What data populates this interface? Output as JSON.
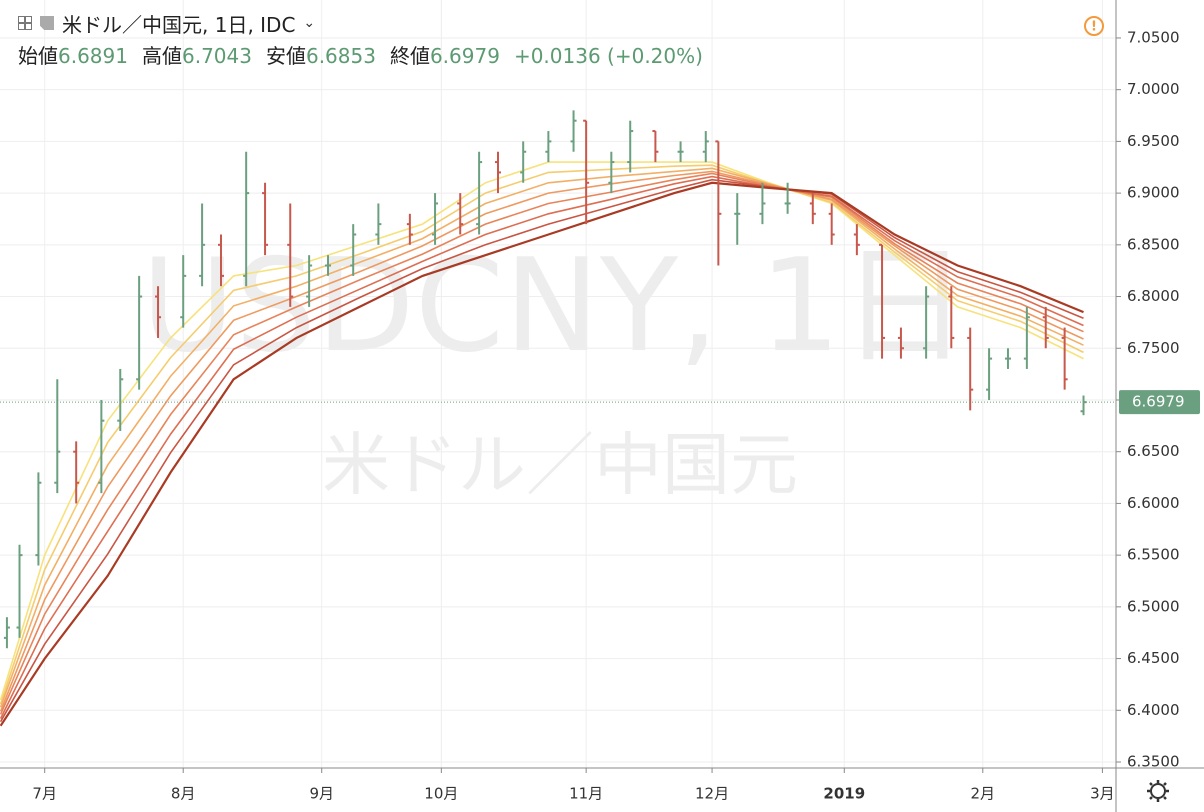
{
  "header": {
    "title": "米ドル／中国元, 1日, IDC",
    "readout": [
      {
        "label": "始値",
        "value": "6.6891"
      },
      {
        "label": "高値",
        "value": "6.7043"
      },
      {
        "label": "安値",
        "value": "6.6853"
      },
      {
        "label": "終値",
        "value": "6.6979"
      }
    ],
    "change": "+0.0136 (+0.20%)"
  },
  "watermark": {
    "symbol": "USDCNY, 1日",
    "description": "米ドル／中国元"
  },
  "chart_data": {
    "type": "ohlc",
    "xlim": [
      -7.1,
      170
    ],
    "xticks": [
      {
        "value": 0,
        "label": "7月"
      },
      {
        "value": 22,
        "label": "8月"
      },
      {
        "value": 44,
        "label": "9月"
      },
      {
        "value": 63,
        "label": "10月"
      },
      {
        "value": 86,
        "label": "11月"
      },
      {
        "value": 106,
        "label": "12月"
      },
      {
        "value": 127,
        "label": "2019"
      },
      {
        "value": 149,
        "label": "2月"
      },
      {
        "value": 168,
        "label": "3月"
      }
    ],
    "ylim": [
      6.3442,
      7.0867
    ],
    "yticks": [
      {
        "value": 6.35,
        "label": "6.3500"
      },
      {
        "value": 6.4,
        "label": "6.4000"
      },
      {
        "value": 6.45,
        "label": "6.4500"
      },
      {
        "value": 6.5,
        "label": "6.5000"
      },
      {
        "value": 6.55,
        "label": "6.5500"
      },
      {
        "value": 6.6,
        "label": "6.6000"
      },
      {
        "value": 6.65,
        "label": "6.6500"
      },
      {
        "value": 6.7,
        "label": "6.7000"
      },
      {
        "value": 6.75,
        "label": "6.7500"
      },
      {
        "value": 6.8,
        "label": "6.8000"
      },
      {
        "value": 6.85,
        "label": "6.8500"
      },
      {
        "value": 6.9,
        "label": "6.9000"
      },
      {
        "value": 6.95,
        "label": "6.9500"
      },
      {
        "value": 7.0,
        "label": "7.0000"
      },
      {
        "value": 7.05,
        "label": "7.0500"
      }
    ],
    "grid": true,
    "up_color": "#6a9f7f",
    "down_color": "#c8574c",
    "last_color": "#6a9f7f",
    "ohlc": {
      "x": [
        -6,
        -4,
        -1,
        2,
        5,
        9,
        12,
        15,
        18,
        22,
        25,
        28,
        32,
        35,
        39,
        42,
        45,
        49,
        53,
        58,
        62,
        66,
        69,
        72,
        76,
        80,
        84,
        86,
        90,
        93,
        97,
        101,
        105,
        107,
        110,
        114,
        118,
        122,
        125,
        129,
        133,
        136,
        140,
        144,
        147,
        150,
        153,
        156,
        159,
        162,
        165
      ],
      "open": [
        6.47,
        6.48,
        6.55,
        6.62,
        6.65,
        6.62,
        6.68,
        6.72,
        6.8,
        6.78,
        6.82,
        6.85,
        6.82,
        6.9,
        6.85,
        6.8,
        6.83,
        6.83,
        6.86,
        6.87,
        6.86,
        6.89,
        6.87,
        6.93,
        6.92,
        6.94,
        6.95,
        6.97,
        6.91,
        6.93,
        6.96,
        6.94,
        6.94,
        6.95,
        6.88,
        6.88,
        6.89,
        6.89,
        6.88,
        6.86,
        6.85,
        6.76,
        6.75,
        6.8,
        6.76,
        6.71,
        6.74,
        6.74,
        6.78,
        6.76,
        6.6891
      ],
      "high": [
        6.49,
        6.56,
        6.63,
        6.72,
        6.66,
        6.7,
        6.73,
        6.82,
        6.81,
        6.84,
        6.89,
        6.86,
        6.94,
        6.91,
        6.89,
        6.84,
        6.84,
        6.87,
        6.89,
        6.88,
        6.9,
        6.9,
        6.94,
        6.94,
        6.95,
        6.96,
        6.98,
        6.97,
        6.94,
        6.97,
        6.96,
        6.95,
        6.96,
        6.95,
        6.9,
        6.91,
        6.91,
        6.9,
        6.89,
        6.87,
        6.85,
        6.77,
        6.81,
        6.81,
        6.77,
        6.75,
        6.75,
        6.79,
        6.79,
        6.77,
        6.7043
      ],
      "low": [
        6.46,
        6.47,
        6.54,
        6.61,
        6.6,
        6.61,
        6.67,
        6.71,
        6.76,
        6.77,
        6.81,
        6.81,
        6.81,
        6.84,
        6.79,
        6.79,
        6.82,
        6.82,
        6.85,
        6.85,
        6.85,
        6.86,
        6.86,
        6.9,
        6.91,
        6.93,
        6.94,
        6.87,
        6.9,
        6.92,
        6.93,
        6.93,
        6.93,
        6.83,
        6.85,
        6.87,
        6.88,
        6.87,
        6.85,
        6.84,
        6.74,
        6.74,
        6.74,
        6.75,
        6.69,
        6.7,
        6.73,
        6.73,
        6.75,
        6.71,
        6.6853
      ],
      "close": [
        6.48,
        6.55,
        6.62,
        6.65,
        6.62,
        6.68,
        6.72,
        6.8,
        6.78,
        6.82,
        6.85,
        6.82,
        6.9,
        6.85,
        6.8,
        6.83,
        6.83,
        6.86,
        6.87,
        6.86,
        6.89,
        6.87,
        6.93,
        6.92,
        6.94,
        6.95,
        6.97,
        6.91,
        6.93,
        6.96,
        6.94,
        6.94,
        6.95,
        6.88,
        6.88,
        6.89,
        6.89,
        6.88,
        6.86,
        6.85,
        6.76,
        6.75,
        6.8,
        6.76,
        6.71,
        6.74,
        6.74,
        6.78,
        6.76,
        6.72,
        6.6979
      ]
    },
    "ma_x": [
      -7,
      0,
      10,
      20,
      30,
      40,
      50,
      60,
      70,
      80,
      90,
      100,
      106,
      115,
      125,
      135,
      145,
      155,
      165
    ],
    "series": [
      {
        "color": "#f7e27c",
        "values": [
          6.41,
          6.55,
          6.68,
          6.76,
          6.82,
          6.83,
          6.85,
          6.87,
          6.91,
          6.93,
          6.93,
          6.93,
          6.93,
          6.91,
          6.89,
          6.84,
          6.79,
          6.77,
          6.74
        ]
      },
      {
        "color": "#f5cc6e",
        "values": [
          6.406,
          6.536,
          6.659,
          6.741,
          6.806,
          6.82,
          6.841,
          6.863,
          6.9,
          6.92,
          6.923,
          6.926,
          6.927,
          6.909,
          6.891,
          6.843,
          6.796,
          6.776,
          6.746
        ]
      },
      {
        "color": "#f2b066",
        "values": [
          6.403,
          6.521,
          6.637,
          6.723,
          6.791,
          6.81,
          6.833,
          6.856,
          6.89,
          6.91,
          6.916,
          6.921,
          6.924,
          6.909,
          6.893,
          6.846,
          6.801,
          6.781,
          6.753
        ]
      },
      {
        "color": "#ee9a60",
        "values": [
          6.399,
          6.507,
          6.616,
          6.704,
          6.777,
          6.8,
          6.824,
          6.849,
          6.88,
          6.9,
          6.909,
          6.917,
          6.921,
          6.908,
          6.894,
          6.849,
          6.807,
          6.787,
          6.759
        ]
      },
      {
        "color": "#e8845a",
        "values": [
          6.396,
          6.493,
          6.594,
          6.686,
          6.763,
          6.79,
          6.816,
          6.841,
          6.87,
          6.89,
          6.901,
          6.913,
          6.919,
          6.907,
          6.896,
          6.851,
          6.813,
          6.793,
          6.766
        ]
      },
      {
        "color": "#dd6e52",
        "values": [
          6.392,
          6.479,
          6.573,
          6.667,
          6.749,
          6.78,
          6.807,
          6.834,
          6.86,
          6.88,
          6.894,
          6.909,
          6.916,
          6.906,
          6.897,
          6.854,
          6.819,
          6.799,
          6.772
        ]
      },
      {
        "color": "#c95643",
        "values": [
          6.389,
          6.464,
          6.551,
          6.649,
          6.734,
          6.77,
          6.799,
          6.827,
          6.85,
          6.87,
          6.887,
          6.904,
          6.913,
          6.906,
          6.899,
          6.857,
          6.824,
          6.804,
          6.779
        ]
      },
      {
        "color": "#a93b24",
        "values": [
          6.385,
          6.45,
          6.53,
          6.63,
          6.72,
          6.76,
          6.79,
          6.82,
          6.84,
          6.86,
          6.88,
          6.9,
          6.91,
          6.905,
          6.9,
          6.86,
          6.83,
          6.81,
          6.785
        ]
      }
    ]
  }
}
